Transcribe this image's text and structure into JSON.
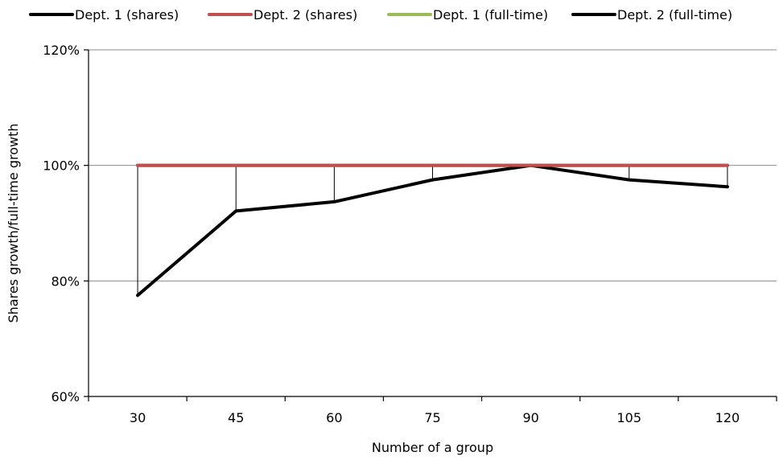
{
  "chart_data": {
    "type": "line",
    "title": "",
    "xlabel": "Number of a group",
    "ylabel": "Shares growth/full-time growth",
    "categories": [
      "30",
      "45",
      "60",
      "75",
      "90",
      "105",
      "120"
    ],
    "ylim": [
      0.6,
      1.2
    ],
    "yticks": [
      0.6,
      0.8,
      1.0,
      1.2
    ],
    "ytick_labels": [
      "60%",
      "80%",
      "100%",
      "120%"
    ],
    "grid": "horizontal",
    "legend_position": "top",
    "series": [
      {
        "name": "Dept. 1 (shares)",
        "color": "#000000",
        "values": [
          1.0,
          1.0,
          1.0,
          1.0,
          1.0,
          1.0,
          1.0
        ]
      },
      {
        "name": "Dept. 2 (shares)",
        "color": "#c0504d",
        "values": [
          1.0,
          1.0,
          1.0,
          1.0,
          1.0,
          1.0,
          1.0
        ]
      },
      {
        "name": "Dept. 1 (full-time)",
        "color": "#9bbb59",
        "values": [
          1.0,
          1.0,
          1.0,
          1.0,
          1.0,
          1.0,
          1.0
        ]
      },
      {
        "name": "Dept. 2 (full-time)",
        "color": "#000000",
        "values": [
          0.775,
          0.921,
          0.937,
          0.975,
          1.0,
          0.975,
          0.963
        ]
      }
    ]
  }
}
